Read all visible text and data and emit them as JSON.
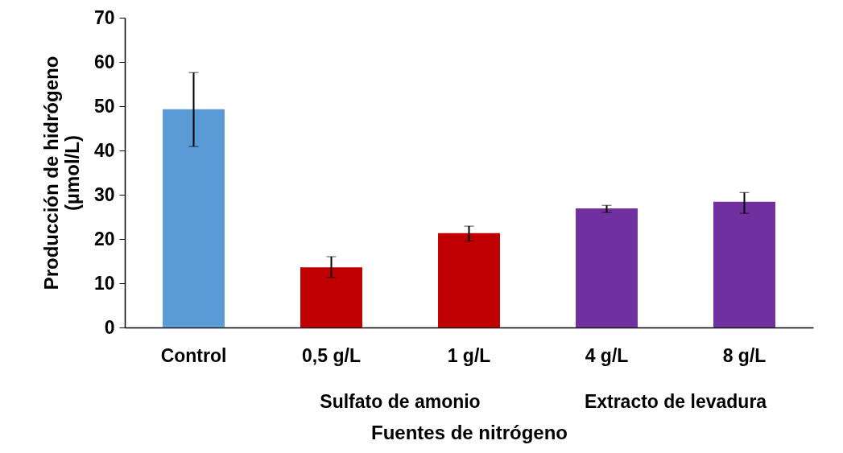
{
  "chart_data": {
    "type": "bar",
    "xlabel": "Fuentes de nitrógeno",
    "ylabel": "Producción de hidrógeno (µmol/L)",
    "categories": [
      "Control",
      "0,5 g/L",
      "1 g/L",
      "4 g/L",
      "8 g/L"
    ],
    "values": [
      49.3,
      13.6,
      21.3,
      26.9,
      28.4
    ],
    "colors": [
      "#5b9bd5",
      "#c00000",
      "#c00000",
      "#7030a0",
      "#7030a0"
    ],
    "errors": [
      [
        40.9,
        57.6
      ],
      [
        11.3,
        16.0
      ],
      [
        19.5,
        22.9
      ],
      [
        26.0,
        27.6
      ],
      [
        25.8,
        30.5
      ]
    ],
    "ylim": [
      0,
      70
    ],
    "yticks": [
      0,
      10,
      20,
      30,
      40,
      50,
      60,
      70
    ],
    "grid": false,
    "annotations": [
      "Sulfato de amonio",
      "Extracto de levadura"
    ]
  }
}
